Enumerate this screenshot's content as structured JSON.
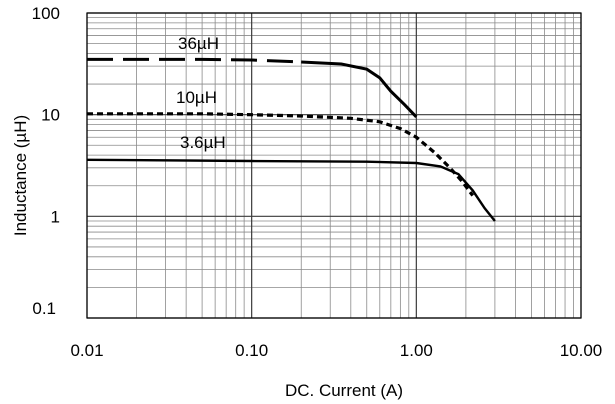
{
  "chart_data": {
    "type": "line",
    "title": "",
    "xlabel": "DC. Current (A)",
    "ylabel": "Inductance (µH)",
    "xscale": "log",
    "yscale": "log",
    "xlim": [
      0.01,
      10
    ],
    "ylim": [
      0.1,
      100
    ],
    "grid": "major and minor",
    "x_ticks": [
      0.01,
      0.1,
      1,
      10
    ],
    "x_tick_labels": [
      "0.01",
      "0.10",
      "1.00",
      "10.00"
    ],
    "y_ticks": [
      0.1,
      1,
      10,
      100
    ],
    "y_tick_labels": [
      "0.1",
      "1",
      "10",
      "100"
    ],
    "series": [
      {
        "name": "36µH",
        "line_style": "long-dash then solid",
        "points": [
          [
            0.01,
            35
          ],
          [
            0.05,
            35
          ],
          [
            0.1,
            34.5
          ],
          [
            0.2,
            33
          ],
          [
            0.35,
            31.5
          ],
          [
            0.5,
            28
          ],
          [
            0.6,
            23
          ],
          [
            0.7,
            17
          ],
          [
            0.85,
            12.5
          ],
          [
            1.0,
            9.5
          ]
        ]
      },
      {
        "name": "10µH",
        "line_style": "dotted / short-dash",
        "points": [
          [
            0.01,
            10.2
          ],
          [
            0.05,
            10.2
          ],
          [
            0.1,
            10
          ],
          [
            0.2,
            9.7
          ],
          [
            0.4,
            9.2
          ],
          [
            0.6,
            8.5
          ],
          [
            0.8,
            7.3
          ],
          [
            1.0,
            6
          ],
          [
            1.3,
            4.2
          ],
          [
            1.6,
            3
          ],
          [
            1.9,
            2.2
          ],
          [
            2.2,
            1.6
          ]
        ]
      },
      {
        "name": "3.6µH",
        "line_style": "solid",
        "points": [
          [
            0.01,
            3.6
          ],
          [
            0.1,
            3.5
          ],
          [
            0.5,
            3.45
          ],
          [
            1.0,
            3.35
          ],
          [
            1.4,
            3.1
          ],
          [
            1.8,
            2.6
          ],
          [
            2.2,
            1.8
          ],
          [
            2.6,
            1.2
          ],
          [
            3.0,
            0.9
          ]
        ]
      }
    ]
  }
}
